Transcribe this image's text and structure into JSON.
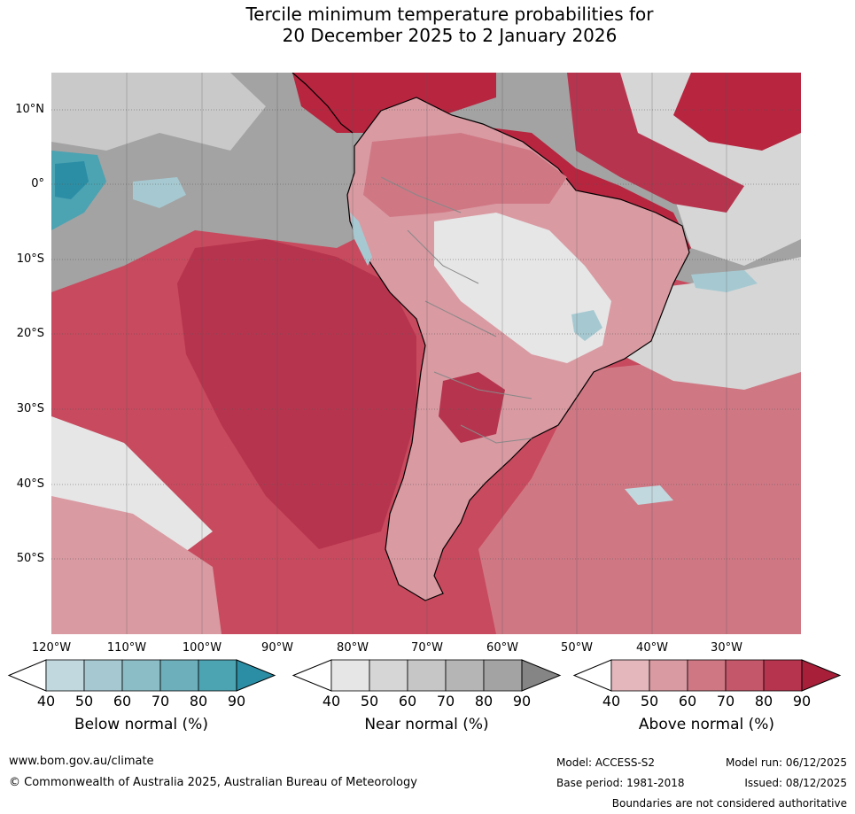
{
  "title": {
    "line1": "Tercile minimum temperature probabilities for",
    "line2": "20 December 2025 to 2 January 2026"
  },
  "map": {
    "lat_labels": [
      "10°N",
      "0°",
      "10°S",
      "20°S",
      "30°S",
      "40°S",
      "50°S"
    ],
    "lon_labels": [
      "120°W",
      "110°W",
      "100°W",
      "90°W",
      "80°W",
      "70°W",
      "60°W",
      "50°W",
      "40°W",
      "30°W"
    ],
    "colors": {
      "ocean_warm": "#c84a5e",
      "warm_strong": "#b7253f",
      "land_warm": "#cf6b78",
      "near_grey": "#9f9f9f",
      "cool": "#2b8ea5"
    }
  },
  "legends": [
    {
      "label": "Below normal (%)",
      "ticks": [
        "40",
        "50",
        "60",
        "70",
        "80",
        "90"
      ],
      "colors": [
        "#ffffff",
        "#c0d8de",
        "#a6c9d1",
        "#8bbdc6",
        "#6eafbc",
        "#4ca3b2",
        "#2b8ea5"
      ]
    },
    {
      "label": "Near normal (%)",
      "ticks": [
        "40",
        "50",
        "60",
        "70",
        "80",
        "90"
      ],
      "colors": [
        "#ffffff",
        "#e6e6e6",
        "#d6d6d6",
        "#c6c6c6",
        "#b5b5b5",
        "#a3a3a3",
        "#858585"
      ]
    },
    {
      "label": "Above normal (%)",
      "ticks": [
        "40",
        "50",
        "60",
        "70",
        "80",
        "90"
      ],
      "colors": [
        "#ffffff",
        "#e3b7bc",
        "#d99aa2",
        "#cf7884",
        "#c45769",
        "#b7344e",
        "#a81f3a"
      ]
    }
  ],
  "footer": {
    "website": "www.bom.gov.au/climate",
    "copyright": "© Commonwealth of Australia 2025, Australian Bureau of Meteorology",
    "model": "Model: ACCESS-S2",
    "base_period": "Base period: 1981-2018",
    "model_run": "Model run: 06/12/2025",
    "issued": "Issued: 08/12/2025",
    "disclaimer": "Boundaries are not considered authoritative"
  }
}
